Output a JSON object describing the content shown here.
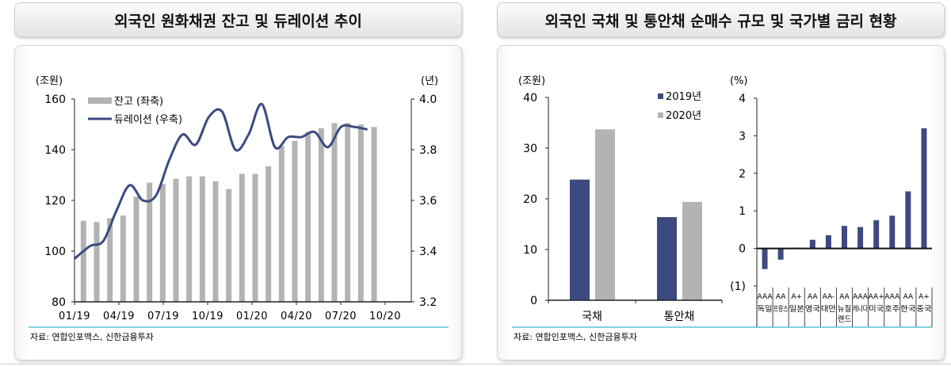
{
  "left": {
    "title": "외국인 원화채권 잔고 및 듀레이션 추이",
    "source": "자료: 연합인포맥스, 신한금융투자"
  },
  "right": {
    "title": "외국인 국채 및 통안채 순매수 규모 및 국가별 금리 현황",
    "source": "자료: 연합인포맥스, 신한금융투자"
  },
  "colors": {
    "navy": "#3d4a80",
    "gray": "#b3b3b3",
    "accent_line": "#3fb4d0"
  },
  "chart_data": [
    {
      "type": "bar+line",
      "title": "외국인 원화채권 잔고 및 듀레이션 추이",
      "ylabel_left": "(조원)",
      "ylabel_right": "(년)",
      "ylim_left": [
        80,
        160
      ],
      "ylim_right": [
        3.2,
        4.0
      ],
      "yticks_left": [
        "160",
        "140",
        "120",
        "100",
        "80"
      ],
      "yticks_right": [
        "4.0",
        "3.8",
        "3.6",
        "3.4",
        "3.2"
      ],
      "xticks": [
        "01/19",
        "04/19",
        "07/19",
        "10/19",
        "01/20",
        "04/20",
        "07/20",
        "10/20"
      ],
      "legend": [
        "잔고 (좌축)",
        "듀레이션 (우축)"
      ],
      "x": [
        "01/19",
        "02/19",
        "03/19",
        "04/19",
        "05/19",
        "06/19",
        "07/19",
        "08/19",
        "09/19",
        "10/19",
        "11/19",
        "12/19",
        "01/20",
        "02/20",
        "03/20",
        "04/20",
        "05/20",
        "06/20",
        "07/20",
        "08/20",
        "09/20",
        "10/20",
        "11/20"
      ],
      "series": [
        {
          "name": "잔고 (좌축)",
          "axis": "left",
          "type": "bar",
          "values": [
            112,
            111.5,
            113,
            114,
            121.5,
            127,
            126.5,
            128.5,
            129.5,
            129.5,
            127.5,
            124.5,
            130.5,
            130.5,
            133.5,
            141.5,
            143.5,
            147,
            148.5,
            150.5,
            150.5,
            150,
            149
          ]
        },
        {
          "name": "듀레이션 (우축)",
          "axis": "right",
          "type": "line",
          "values": [
            3.37,
            3.42,
            3.44,
            3.56,
            3.66,
            3.6,
            3.62,
            3.76,
            3.86,
            3.82,
            3.93,
            3.95,
            3.8,
            3.86,
            3.98,
            3.81,
            3.85,
            3.85,
            3.87,
            3.81,
            3.89,
            3.89,
            3.88
          ]
        }
      ]
    },
    {
      "type": "bar",
      "title": "외국인 국채 및 통안채 순매수 규모",
      "ylabel": "(조원)",
      "ylim": [
        0,
        40
      ],
      "yticks": [
        "40",
        "30",
        "20",
        "10",
        "0"
      ],
      "categories": [
        "국채",
        "통안채"
      ],
      "legend": [
        "2019년",
        "2020년"
      ],
      "series": [
        {
          "name": "2019년",
          "values": [
            23.8,
            16.4
          ]
        },
        {
          "name": "2020년",
          "values": [
            33.7,
            19.4
          ]
        }
      ]
    },
    {
      "type": "bar",
      "title": "국가별 금리 현황",
      "ylabel": "(%)",
      "ylim": [
        -1,
        4
      ],
      "yticks": [
        "4",
        "3",
        "2",
        "1",
        "0",
        "(1)"
      ],
      "categories": [
        "독일",
        "프랑스",
        "일본",
        "영국",
        "대만",
        "뉴질랜드",
        "캐나다",
        "미국",
        "호주",
        "한국",
        "중국"
      ],
      "ratings": [
        "AAA",
        "AA",
        "A+",
        "AA",
        "AA-",
        "AA",
        "AAA",
        "AA+",
        "AAA",
        "AA",
        "A+"
      ],
      "series": [
        {
          "name": "금리",
          "values": [
            -0.55,
            -0.3,
            0.02,
            0.23,
            0.35,
            0.6,
            0.57,
            0.75,
            0.87,
            1.52,
            3.2
          ]
        }
      ]
    }
  ]
}
